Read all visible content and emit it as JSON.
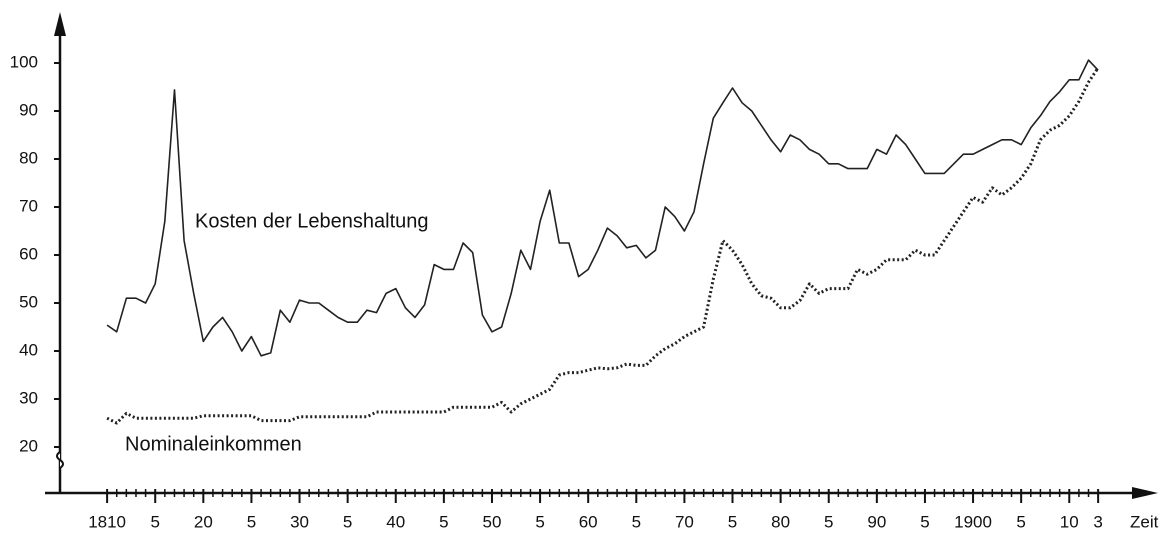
{
  "chart_data": {
    "type": "line",
    "x": [
      1810,
      1811,
      1812,
      1813,
      1814,
      1815,
      1816,
      1817,
      1818,
      1819,
      1820,
      1821,
      1822,
      1823,
      1824,
      1825,
      1826,
      1827,
      1828,
      1829,
      1830,
      1831,
      1832,
      1833,
      1834,
      1835,
      1836,
      1837,
      1838,
      1839,
      1840,
      1841,
      1842,
      1843,
      1844,
      1845,
      1846,
      1847,
      1848,
      1849,
      1850,
      1851,
      1852,
      1853,
      1854,
      1855,
      1856,
      1857,
      1858,
      1859,
      1860,
      1861,
      1862,
      1863,
      1864,
      1865,
      1866,
      1867,
      1868,
      1869,
      1870,
      1871,
      1872,
      1873,
      1874,
      1875,
      1876,
      1877,
      1878,
      1879,
      1880,
      1881,
      1882,
      1883,
      1884,
      1885,
      1886,
      1887,
      1888,
      1889,
      1890,
      1891,
      1892,
      1893,
      1894,
      1895,
      1896,
      1897,
      1898,
      1899,
      1900,
      1901,
      1902,
      1903,
      1904,
      1905,
      1906,
      1907,
      1908,
      1909,
      1910,
      1911,
      1912,
      1913
    ],
    "series": [
      {
        "name": "Kosten der Lebenshaltung",
        "color": "#222222",
        "style": "solid",
        "values": [
          45.4,
          44,
          51,
          51,
          50,
          54,
          67,
          94.4,
          63,
          52,
          42,
          45,
          47,
          44,
          40,
          43,
          39,
          39.6,
          48.5,
          46,
          50.6,
          50,
          50,
          48.5,
          47,
          46,
          46,
          48.5,
          48,
          52,
          53,
          49,
          47,
          49.6,
          58,
          57,
          57,
          62.5,
          60.5,
          47.5,
          44,
          45,
          52,
          61,
          57,
          67,
          73.5,
          62.5,
          62.5,
          55.5,
          57,
          61,
          65.6,
          64,
          61.5,
          62,
          59.4,
          61,
          70,
          68,
          65,
          69,
          79,
          88.5,
          91.7,
          94.8,
          91.7,
          90,
          87,
          84,
          81.5,
          85,
          84,
          82,
          81,
          79,
          79,
          78,
          78,
          78,
          82,
          81,
          85,
          83,
          80,
          77,
          77,
          77,
          79,
          81,
          81,
          82,
          83,
          84,
          84,
          83,
          86.5,
          89,
          92,
          94,
          96.5,
          96.5,
          100.6,
          98.5
        ]
      },
      {
        "name": "Nominaleinkommen",
        "color": "#222222",
        "style": "dotted",
        "values": [
          26,
          25,
          27,
          26,
          26,
          26,
          26,
          26,
          26,
          26,
          26.5,
          26.5,
          26.5,
          26.5,
          26.5,
          26.5,
          25.5,
          25.5,
          25.5,
          25.5,
          26.3,
          26.3,
          26.3,
          26.3,
          26.3,
          26.3,
          26.3,
          26.3,
          27.3,
          27.3,
          27.3,
          27.3,
          27.3,
          27.3,
          27.3,
          27.3,
          28.3,
          28.3,
          28.3,
          28.3,
          28.3,
          29.3,
          27.3,
          29,
          30,
          31,
          32,
          35,
          35.5,
          35.5,
          36,
          36.5,
          36.3,
          36.5,
          37.3,
          37,
          37,
          39,
          40.5,
          41.5,
          43,
          44,
          45,
          55,
          63,
          61,
          58,
          54,
          51.5,
          51,
          49,
          49,
          50.5,
          54,
          52,
          53,
          53,
          53,
          57,
          56,
          57,
          59,
          59,
          59,
          61,
          60,
          60,
          63,
          66,
          69,
          72,
          71,
          74,
          72.5,
          74,
          76,
          79,
          84,
          86,
          87,
          89,
          92,
          96,
          99
        ]
      }
    ],
    "xlabel": "Zeit",
    "xlim": [
      1805,
      1916
    ],
    "xticks": [
      {
        "value": 1810,
        "label": "1810"
      },
      {
        "value": 1815,
        "label": "5"
      },
      {
        "value": 1820,
        "label": "20"
      },
      {
        "value": 1825,
        "label": "5"
      },
      {
        "value": 1830,
        "label": "30"
      },
      {
        "value": 1835,
        "label": "5"
      },
      {
        "value": 1840,
        "label": "40"
      },
      {
        "value": 1845,
        "label": "5"
      },
      {
        "value": 1850,
        "label": "50"
      },
      {
        "value": 1855,
        "label": "5"
      },
      {
        "value": 1860,
        "label": "60"
      },
      {
        "value": 1865,
        "label": "5"
      },
      {
        "value": 1870,
        "label": "70"
      },
      {
        "value": 1875,
        "label": "5"
      },
      {
        "value": 1880,
        "label": "80"
      },
      {
        "value": 1885,
        "label": "5"
      },
      {
        "value": 1890,
        "label": "90"
      },
      {
        "value": 1895,
        "label": "5"
      },
      {
        "value": 1900,
        "label": "1900"
      },
      {
        "value": 1905,
        "label": "5"
      },
      {
        "value": 1910,
        "label": "10"
      },
      {
        "value": 1913,
        "label": "3"
      }
    ],
    "ylim": [
      20,
      100
    ],
    "yticks": [
      20,
      30,
      40,
      50,
      60,
      70,
      80,
      90,
      100
    ]
  }
}
